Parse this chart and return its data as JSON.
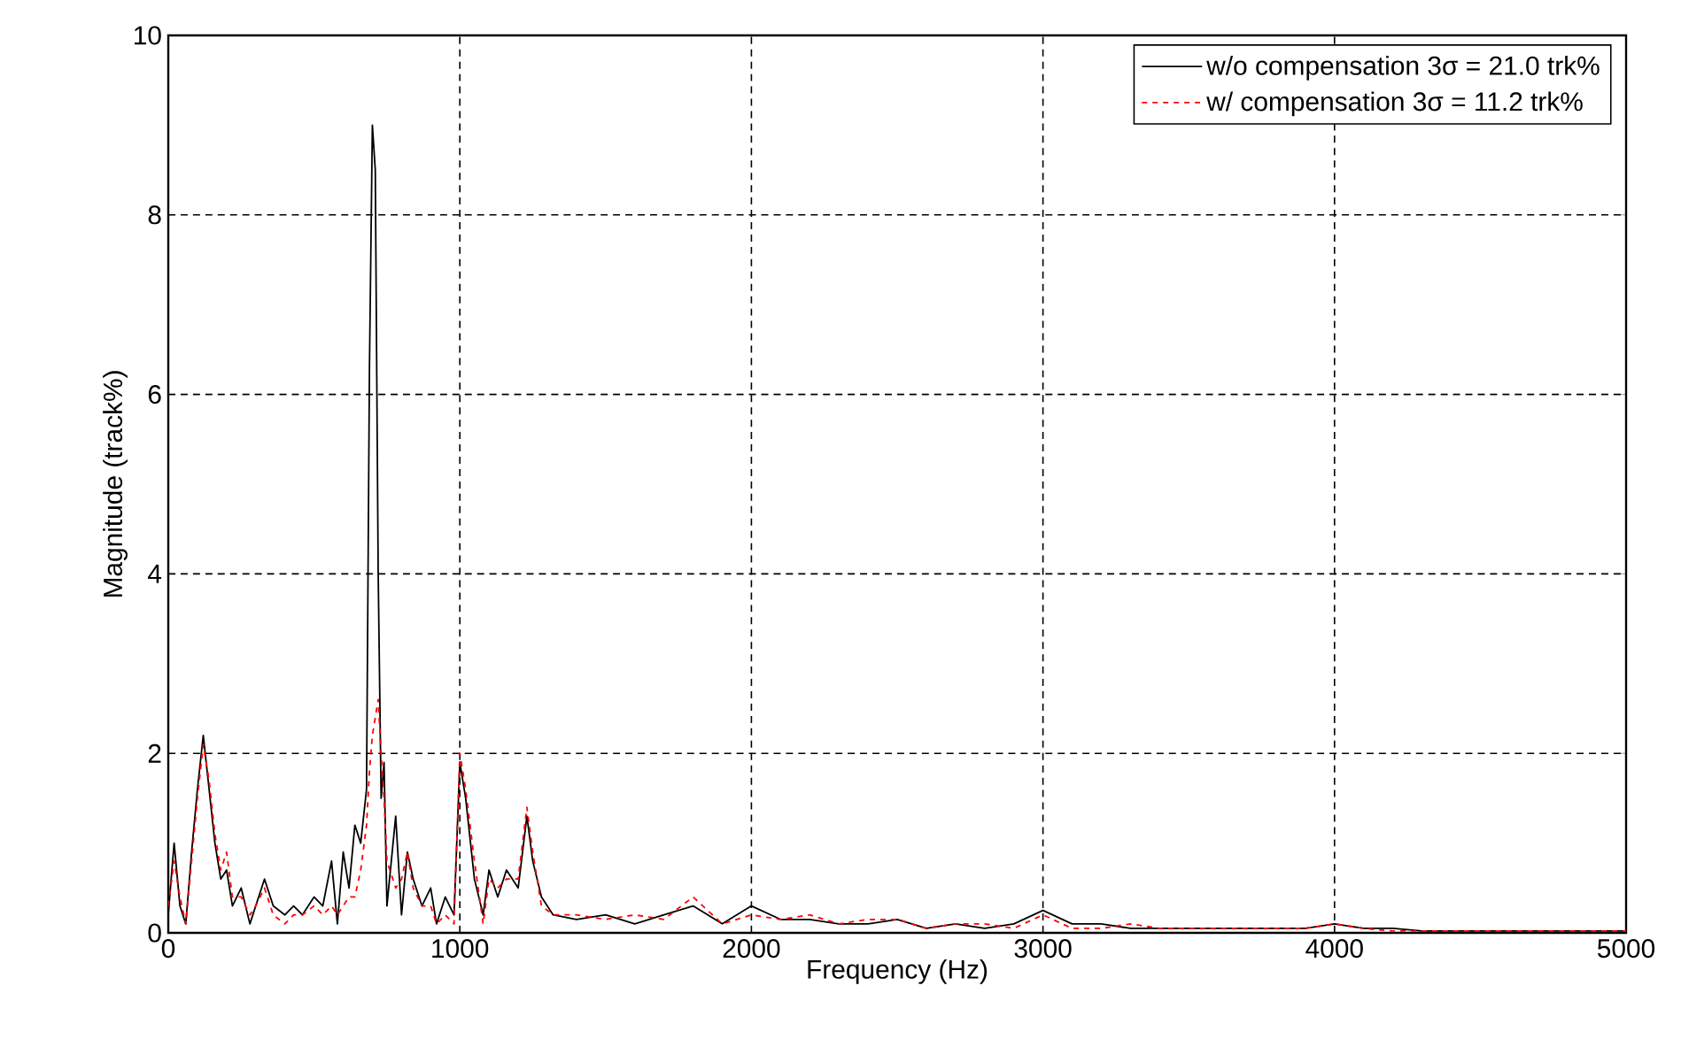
{
  "chart_data": {
    "type": "line",
    "xlabel": "Frequency (Hz)",
    "ylabel": "Magnitude (track%)",
    "x": [
      0,
      20,
      40,
      60,
      80,
      100,
      120,
      140,
      160,
      180,
      200,
      220,
      250,
      280,
      300,
      330,
      360,
      400,
      430,
      460,
      500,
      530,
      560,
      580,
      600,
      620,
      640,
      660,
      680,
      690,
      700,
      710,
      720,
      730,
      740,
      750,
      780,
      800,
      820,
      840,
      870,
      900,
      920,
      950,
      980,
      1000,
      1020,
      1050,
      1080,
      1100,
      1130,
      1160,
      1200,
      1230,
      1250,
      1280,
      1320,
      1400,
      1500,
      1600,
      1700,
      1800,
      1900,
      2000,
      2100,
      2200,
      2300,
      2400,
      2500,
      2600,
      2700,
      2800,
      2900,
      3000,
      3100,
      3200,
      3300,
      3400,
      3500,
      3600,
      3700,
      3800,
      3900,
      4000,
      4100,
      4200,
      4300,
      4500,
      5000
    ],
    "series": [
      {
        "name": "w/o compensation 3σ = 21.0 trk%",
        "color": "#000000",
        "line_style": "solid",
        "values": [
          0.2,
          1.0,
          0.3,
          0.1,
          0.9,
          1.6,
          2.2,
          1.6,
          1.0,
          0.6,
          0.7,
          0.3,
          0.5,
          0.1,
          0.3,
          0.6,
          0.3,
          0.2,
          0.3,
          0.2,
          0.4,
          0.3,
          0.8,
          0.1,
          0.9,
          0.5,
          1.2,
          1.0,
          1.6,
          6.3,
          9.0,
          8.5,
          4.0,
          1.5,
          1.9,
          0.3,
          1.3,
          0.2,
          0.9,
          0.6,
          0.3,
          0.5,
          0.1,
          0.4,
          0.2,
          1.9,
          1.5,
          0.6,
          0.2,
          0.7,
          0.4,
          0.7,
          0.5,
          1.3,
          0.8,
          0.4,
          0.2,
          0.15,
          0.2,
          0.1,
          0.2,
          0.3,
          0.1,
          0.3,
          0.15,
          0.15,
          0.1,
          0.1,
          0.15,
          0.05,
          0.1,
          0.05,
          0.1,
          0.25,
          0.1,
          0.1,
          0.05,
          0.05,
          0.05,
          0.05,
          0.05,
          0.05,
          0.05,
          0.1,
          0.05,
          0.05,
          0.02,
          0.02,
          0.02
        ]
      },
      {
        "name": "w/  compensation 3σ = 11.2 trk%",
        "color": "#ff0000",
        "line_style": "dashed",
        "values": [
          0.3,
          0.8,
          0.4,
          0.1,
          0.8,
          1.5,
          2.1,
          1.7,
          1.1,
          0.7,
          0.9,
          0.4,
          0.4,
          0.2,
          0.3,
          0.5,
          0.2,
          0.1,
          0.2,
          0.2,
          0.3,
          0.2,
          0.3,
          0.2,
          0.3,
          0.4,
          0.4,
          0.7,
          1.2,
          1.8,
          2.2,
          2.4,
          2.6,
          2.0,
          1.5,
          0.8,
          0.5,
          0.6,
          0.9,
          0.5,
          0.3,
          0.3,
          0.1,
          0.2,
          0.1,
          2.0,
          1.6,
          0.8,
          0.1,
          0.6,
          0.5,
          0.6,
          0.6,
          1.4,
          0.9,
          0.3,
          0.2,
          0.2,
          0.15,
          0.2,
          0.15,
          0.4,
          0.1,
          0.2,
          0.15,
          0.2,
          0.1,
          0.15,
          0.15,
          0.05,
          0.1,
          0.1,
          0.05,
          0.2,
          0.05,
          0.05,
          0.1,
          0.05,
          0.05,
          0.05,
          0.05,
          0.05,
          0.05,
          0.1,
          0.05,
          0.02,
          0.02,
          0.02,
          0.02
        ]
      }
    ],
    "xlim": [
      0,
      5000
    ],
    "ylim": [
      0,
      10
    ],
    "xticks": [
      0,
      1000,
      2000,
      3000,
      4000,
      5000
    ],
    "yticks": [
      0,
      2,
      4,
      6,
      8,
      10
    ],
    "grid": true,
    "legend": "top right"
  }
}
